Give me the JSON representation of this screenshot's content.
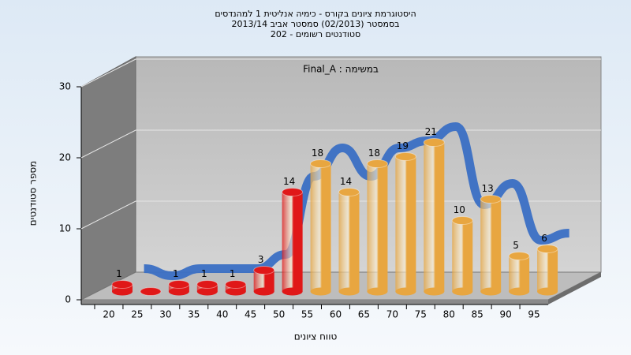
{
  "chart_data": {
    "type": "bar3d",
    "title": [
      "היסטוגרמת ציונים בקורס - כימיה אנליטית 1 למהנדסים",
      "בסמסטר  (02/2013)  סמסטר אביב 2013/14",
      "סטודנטים רשומים - 202"
    ],
    "annotation": "Final_A : במשימה",
    "x_label": "טווח ציונים",
    "y_label": "מספר סטודנטים",
    "categories": [
      "20",
      "25",
      "30",
      "35",
      "40",
      "45",
      "50",
      "55",
      "60",
      "65",
      "70",
      "75",
      "80",
      "85",
      "90",
      "95"
    ],
    "values": [
      1,
      0,
      1,
      1,
      1,
      3,
      14,
      18,
      14,
      18,
      19,
      21,
      10,
      13,
      5,
      6
    ],
    "value_labels": [
      "1",
      null,
      "1",
      "1",
      "1",
      "3",
      "14",
      "18",
      "14",
      "18",
      "19",
      "21",
      "10",
      "13",
      "5",
      "6"
    ],
    "colors": [
      "#e01818",
      "#e01818",
      "#e01818",
      "#e01818",
      "#e01818",
      "#e01818",
      "#e01818",
      "#e8a640",
      "#e8a640",
      "#e8a640",
      "#e8a640",
      "#e8a640",
      "#e8a640",
      "#e8a640",
      "#e8a640",
      "#e8a640"
    ],
    "curve_color": "#3a6fc4",
    "ylim": [
      0,
      30
    ],
    "yticks": [
      0,
      10,
      20,
      30
    ],
    "grid": true
  }
}
